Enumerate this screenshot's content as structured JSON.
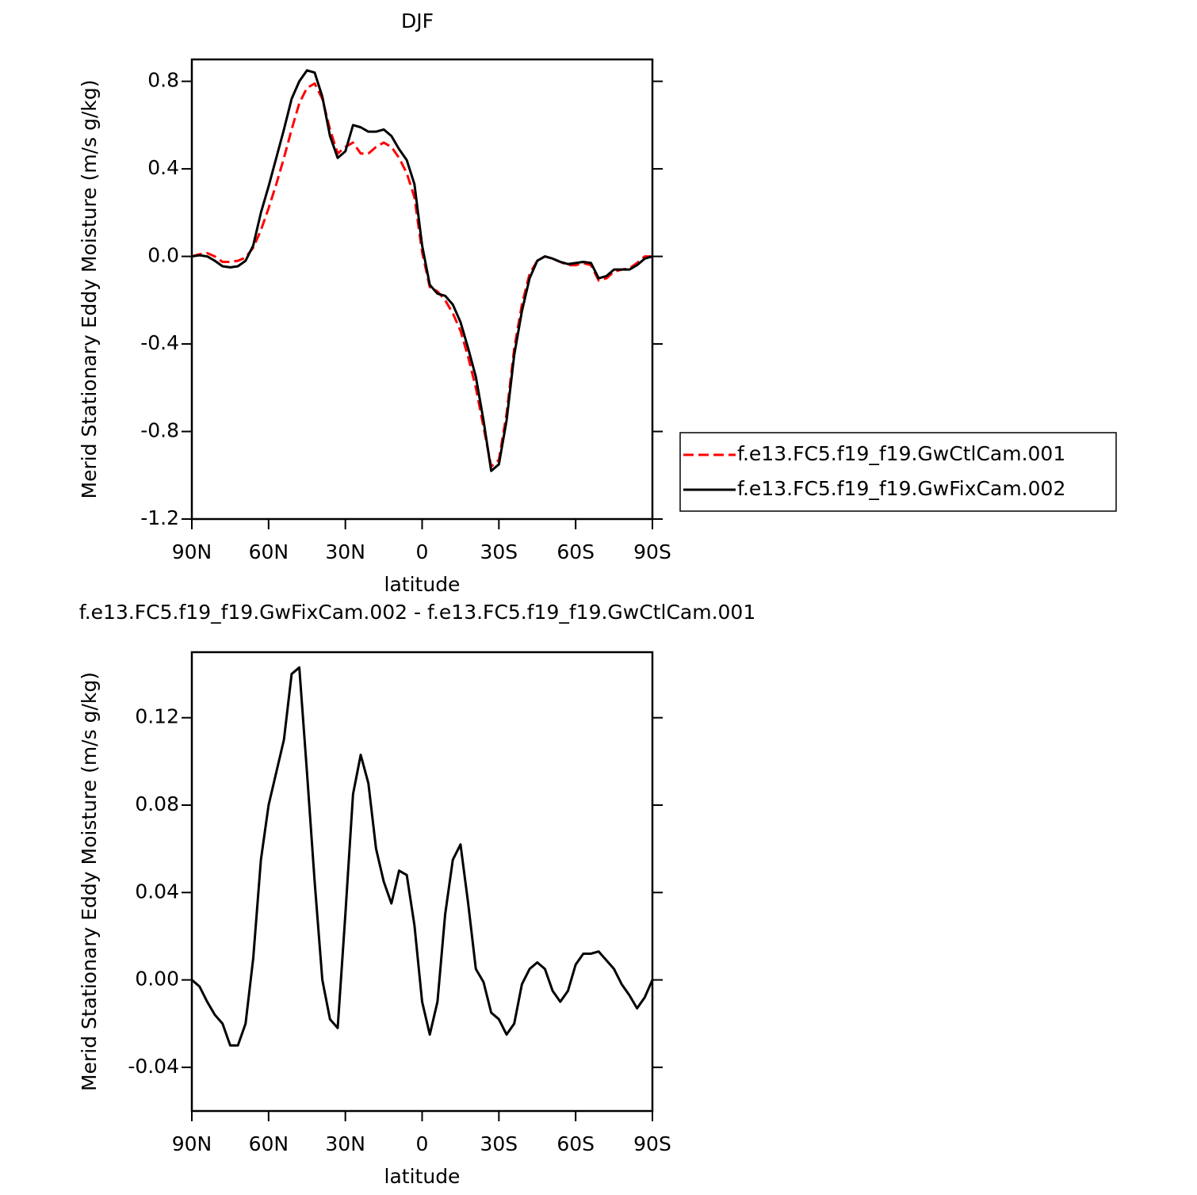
{
  "chart_data": [
    {
      "type": "line",
      "title": "DJF",
      "xlabel": "latitude",
      "ylabel": "Merid Stationary Eddy Moisture (m/s g/kg)",
      "x": [
        90,
        87,
        84,
        81,
        78,
        75,
        72,
        69,
        66,
        63,
        60,
        57,
        54,
        51,
        48,
        45,
        42,
        39,
        36,
        33,
        30,
        27,
        24,
        21,
        18,
        15,
        12,
        9,
        6,
        3,
        0,
        -3,
        -6,
        -9,
        -12,
        -15,
        -18,
        -21,
        -24,
        -27,
        -30,
        -33,
        -36,
        -39,
        -42,
        -45,
        -48,
        -51,
        -54,
        -57,
        -60,
        -63,
        -66,
        -69,
        -72,
        -75,
        -78,
        -81,
        -84,
        -87,
        -90
      ],
      "series": [
        {
          "name": "f.e13.FC5.f19_f19.GwCtlCam.001",
          "color": "#ff0000",
          "style": "dashed",
          "values": [
            0,
            0.01,
            0.015,
            0,
            -0.025,
            -0.025,
            -0.02,
            -0.005,
            0.04,
            0.12,
            0.22,
            0.33,
            0.45,
            0.58,
            0.7,
            0.77,
            0.79,
            0.72,
            0.58,
            0.47,
            0.5,
            0.52,
            0.47,
            0.47,
            0.5,
            0.52,
            0.5,
            0.45,
            0.38,
            0.27,
            0.02,
            -0.14,
            -0.16,
            -0.2,
            -0.26,
            -0.34,
            -0.46,
            -0.6,
            -0.78,
            -0.96,
            -0.93,
            -0.72,
            -0.42,
            -0.22,
            -0.08,
            -0.02,
            0,
            -0.01,
            -0.025,
            -0.04,
            -0.04,
            -0.03,
            -0.04,
            -0.11,
            -0.1,
            -0.07,
            -0.06,
            -0.055,
            -0.03,
            0,
            0
          ]
        },
        {
          "name": "f.e13.FC5.f19_f19.GwFixCam.002",
          "color": "#000000",
          "style": "solid",
          "values": [
            0,
            0.005,
            0,
            -0.02,
            -0.045,
            -0.05,
            -0.045,
            -0.02,
            0.05,
            0.2,
            0.32,
            0.45,
            0.58,
            0.72,
            0.8,
            0.85,
            0.84,
            0.73,
            0.55,
            0.45,
            0.48,
            0.6,
            0.59,
            0.57,
            0.57,
            0.58,
            0.55,
            0.49,
            0.44,
            0.33,
            0.05,
            -0.13,
            -0.17,
            -0.18,
            -0.22,
            -0.3,
            -0.42,
            -0.55,
            -0.75,
            -0.98,
            -0.95,
            -0.75,
            -0.45,
            -0.25,
            -0.1,
            -0.02,
            0,
            -0.01,
            -0.025,
            -0.035,
            -0.03,
            -0.025,
            -0.03,
            -0.1,
            -0.09,
            -0.06,
            -0.06,
            -0.06,
            -0.04,
            -0.01,
            0
          ]
        }
      ],
      "xlim": [
        90,
        -90
      ],
      "xticks": [
        {
          "value": 90,
          "label": "90N"
        },
        {
          "value": 60,
          "label": "60N"
        },
        {
          "value": 30,
          "label": "30N"
        },
        0,
        {
          "value": -30,
          "label": "30S"
        },
        {
          "value": -60,
          "label": "60S"
        },
        {
          "value": -90,
          "label": "90S"
        }
      ],
      "ylim": [
        -1.2,
        0.9
      ],
      "yticks": [
        0.8,
        0.4,
        {
          "value": 0,
          "label": "0.0"
        },
        -0.4,
        -0.8,
        -1.2
      ],
      "legend": "right"
    },
    {
      "type": "line",
      "title": "f.e13.FC5.f19_f19.GwFixCam.002 - f.e13.FC5.f19_f19.GwCtlCam.001",
      "xlabel": "latitude",
      "ylabel": "Merid Stationary Eddy Moisture (m/s g/kg)",
      "x": [
        90,
        87,
        84,
        81,
        78,
        75,
        72,
        69,
        66,
        63,
        60,
        57,
        54,
        51,
        48,
        45,
        42,
        39,
        36,
        33,
        30,
        27,
        24,
        21,
        18,
        15,
        12,
        9,
        6,
        3,
        0,
        -3,
        -6,
        -9,
        -12,
        -15,
        -18,
        -21,
        -24,
        -27,
        -30,
        -33,
        -36,
        -39,
        -42,
        -45,
        -48,
        -51,
        -54,
        -57,
        -60,
        -63,
        -66,
        -69,
        -72,
        -75,
        -78,
        -81,
        -84,
        -87,
        -90
      ],
      "color": "#000000",
      "values": [
        0,
        -0.003,
        -0.01,
        -0.016,
        -0.02,
        -0.03,
        -0.03,
        -0.02,
        0.01,
        0.055,
        0.08,
        0.095,
        0.11,
        0.14,
        0.143,
        0.095,
        0.045,
        0,
        -0.018,
        -0.022,
        0.03,
        0.085,
        0.103,
        0.09,
        0.06,
        0.045,
        0.035,
        0.05,
        0.048,
        0.025,
        -0.01,
        -0.025,
        -0.01,
        0.03,
        0.055,
        0.062,
        0.035,
        0.005,
        -0.001,
        -0.015,
        -0.018,
        -0.025,
        -0.02,
        -0.002,
        0.005,
        0.008,
        0.005,
        -0.005,
        -0.01,
        -0.005,
        0.007,
        0.012,
        0.012,
        0.013,
        0.009,
        0.005,
        -0.002,
        -0.007,
        -0.013,
        -0.008,
        0
      ],
      "xlim": [
        90,
        -90
      ],
      "xticks": [
        {
          "value": 90,
          "label": "90N"
        },
        {
          "value": 60,
          "label": "60N"
        },
        {
          "value": 30,
          "label": "30N"
        },
        0,
        {
          "value": -30,
          "label": "30S"
        },
        {
          "value": -60,
          "label": "60S"
        },
        {
          "value": -90,
          "label": "90S"
        }
      ],
      "ylim": [
        -0.06,
        0.15
      ],
      "yticks": [
        0.12,
        0.08,
        0.04,
        {
          "value": 0,
          "label": "0.00"
        },
        -0.04
      ]
    }
  ]
}
